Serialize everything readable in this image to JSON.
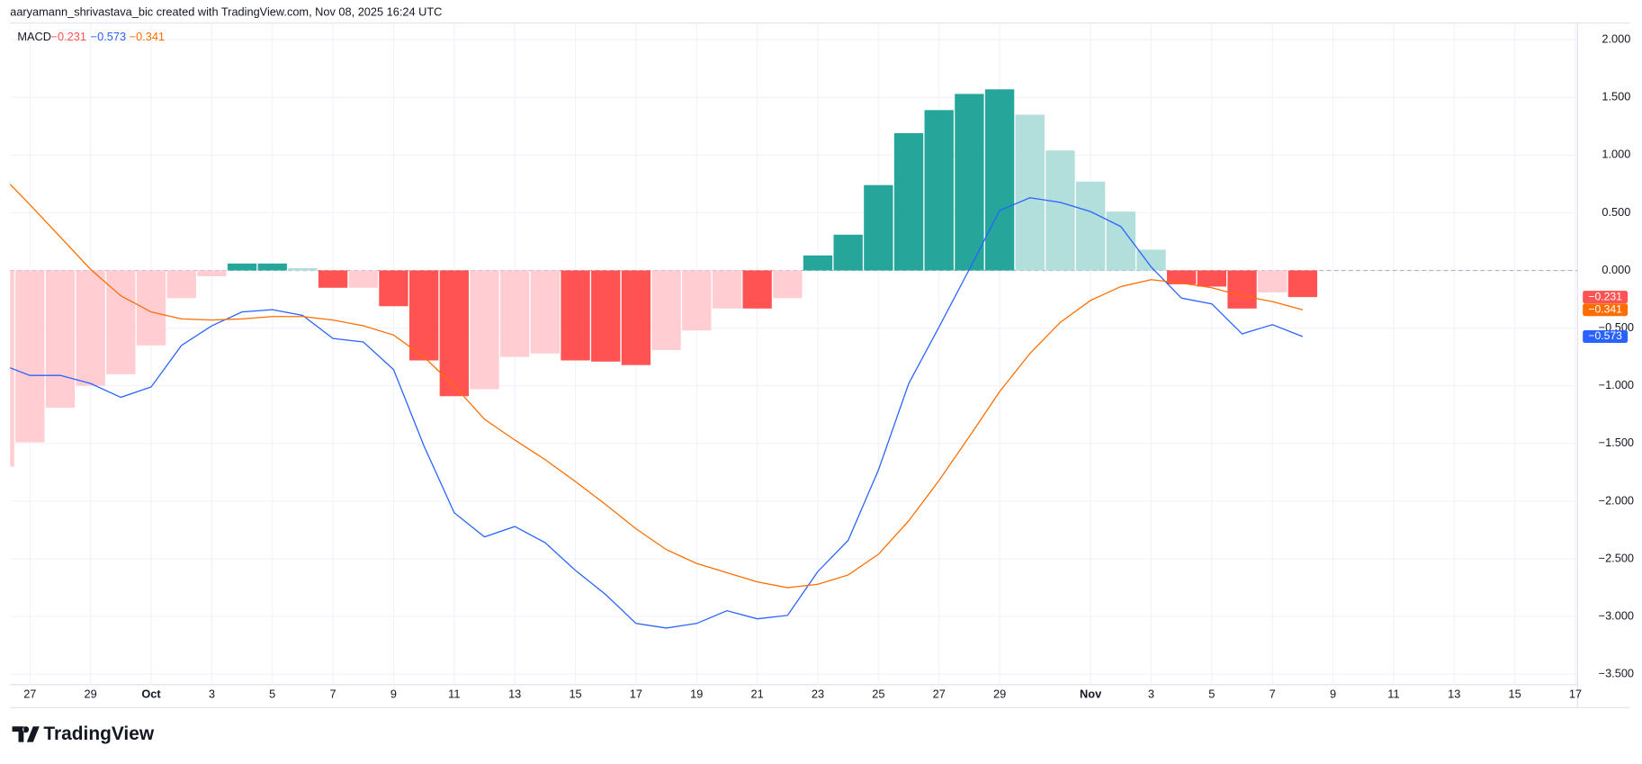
{
  "chart_data": {
    "type": "macd",
    "subtitle": "aaryamann_shrivastava_bic created with TradingView.com, Nov 08, 2025 16:24 UTC",
    "indicator": "MACD",
    "watermark": "TradingView",
    "x": [
      0,
      1,
      2,
      3,
      4,
      5,
      6,
      7,
      8,
      9,
      10,
      11,
      12,
      13,
      14,
      15,
      16,
      17,
      18,
      19,
      20,
      21,
      22,
      23,
      24,
      25,
      26,
      27,
      28,
      29,
      30,
      31,
      32,
      33,
      34,
      35,
      36,
      37,
      38,
      39,
      40,
      41,
      42,
      43
    ],
    "xlim": [
      0.345,
      52.07
    ],
    "xticks": [
      {
        "value": 1,
        "label": "27"
      },
      {
        "value": 3,
        "label": "29"
      },
      {
        "value": 5,
        "label": "Oct"
      },
      {
        "value": 7,
        "label": "3"
      },
      {
        "value": 9,
        "label": "5"
      },
      {
        "value": 11,
        "label": "7"
      },
      {
        "value": 13,
        "label": "9"
      },
      {
        "value": 15,
        "label": "11"
      },
      {
        "value": 17,
        "label": "13"
      },
      {
        "value": 19,
        "label": "15"
      },
      {
        "value": 21,
        "label": "17"
      },
      {
        "value": 23,
        "label": "19"
      },
      {
        "value": 25,
        "label": "21"
      },
      {
        "value": 27,
        "label": "23"
      },
      {
        "value": 29,
        "label": "25"
      },
      {
        "value": 31,
        "label": "27"
      },
      {
        "value": 33,
        "label": "29"
      },
      {
        "value": 36,
        "label": "Nov"
      },
      {
        "value": 38,
        "label": "3"
      },
      {
        "value": 40,
        "label": "5"
      },
      {
        "value": 42,
        "label": "7"
      },
      {
        "value": 44,
        "label": "9"
      },
      {
        "value": 46,
        "label": "11"
      },
      {
        "value": 48,
        "label": "13"
      },
      {
        "value": 50,
        "label": "15"
      },
      {
        "value": 52,
        "label": "17"
      }
    ],
    "ylim": [
      -3.59,
      2.145
    ],
    "yticks": [
      {
        "value": 2,
        "label": "2.000"
      },
      {
        "value": 1.5,
        "label": "1.500"
      },
      {
        "value": 1,
        "label": "1.000"
      },
      {
        "value": 0.5,
        "label": "0.500"
      },
      {
        "value": 0,
        "label": "0.000"
      },
      {
        "value": -0.5,
        "label": "−0.500"
      },
      {
        "value": -1,
        "label": "−1.000"
      },
      {
        "value": -1.5,
        "label": "−1.500"
      },
      {
        "value": -2,
        "label": "−2.000"
      },
      {
        "value": -2.5,
        "label": "−2.500"
      },
      {
        "value": -3,
        "label": "−3.000"
      },
      {
        "value": -3.5,
        "label": "−3.500"
      }
    ],
    "grid": true,
    "series": [
      {
        "type": "bar",
        "color": "#ff5252",
        "last_label": "−0.231",
        "values": [
          -1.7,
          -1.49,
          -1.19,
          -1.0,
          -0.9,
          -0.65,
          -0.24,
          -0.05,
          0.06,
          0.06,
          0.02,
          -0.15,
          -0.15,
          -0.31,
          -0.78,
          -1.09,
          -1.03,
          -0.75,
          -0.72,
          -0.78,
          -0.79,
          -0.82,
          -0.69,
          -0.52,
          -0.33,
          -0.33,
          -0.24,
          0.13,
          0.31,
          0.74,
          1.19,
          1.39,
          1.53,
          1.57,
          1.35,
          1.04,
          0.77,
          0.51,
          0.18,
          -0.12,
          -0.14,
          -0.33,
          -0.19,
          -0.231
        ],
        "colors": [
          "#ffcdd2",
          "#ffcdd2",
          "#ffcdd2",
          "#ffcdd2",
          "#ffcdd2",
          "#ffcdd2",
          "#ffcdd2",
          "#ffcdd2",
          "#26a69a",
          "#26a69a",
          "#b2dfdb",
          "#ff5252",
          "#ffcdd2",
          "#ff5252",
          "#ff5252",
          "#ff5252",
          "#ffcdd2",
          "#ffcdd2",
          "#ffcdd2",
          "#ff5252",
          "#ff5252",
          "#ff5252",
          "#ffcdd2",
          "#ffcdd2",
          "#ffcdd2",
          "#ff5252",
          "#ffcdd2",
          "#26a69a",
          "#26a69a",
          "#26a69a",
          "#26a69a",
          "#26a69a",
          "#26a69a",
          "#26a69a",
          "#b2dfdb",
          "#b2dfdb",
          "#b2dfdb",
          "#b2dfdb",
          "#b2dfdb",
          "#ff5252",
          "#ff5252",
          "#ff5252",
          "#ffcdd2",
          "#ff5252"
        ]
      },
      {
        "type": "line",
        "color": "#2962ff",
        "last_label": "−0.573",
        "values": [
          -0.81,
          -0.91,
          -0.91,
          -0.98,
          -1.1,
          -1.01,
          -0.65,
          -0.48,
          -0.36,
          -0.34,
          -0.39,
          -0.59,
          -0.62,
          -0.86,
          -1.52,
          -2.1,
          -2.31,
          -2.22,
          -2.36,
          -2.6,
          -2.81,
          -3.06,
          -3.1,
          -3.06,
          -2.95,
          -3.02,
          -2.99,
          -2.61,
          -2.34,
          -1.73,
          -0.98,
          -0.49,
          0.01,
          0.52,
          0.63,
          0.59,
          0.51,
          0.38,
          0.03,
          -0.24,
          -0.29,
          -0.55,
          -0.47,
          -0.573
        ]
      },
      {
        "type": "line",
        "color": "#ff6d00",
        "last_label": "−0.341",
        "values": [
          0.84,
          0.57,
          0.29,
          0.01,
          -0.22,
          -0.36,
          -0.42,
          -0.43,
          -0.42,
          -0.4,
          -0.4,
          -0.43,
          -0.48,
          -0.56,
          -0.75,
          -1.0,
          -1.29,
          -1.47,
          -1.64,
          -1.83,
          -2.03,
          -2.24,
          -2.42,
          -2.54,
          -2.62,
          -2.7,
          -2.75,
          -2.72,
          -2.64,
          -2.46,
          -2.17,
          -1.82,
          -1.44,
          -1.05,
          -0.72,
          -0.45,
          -0.26,
          -0.14,
          -0.08,
          -0.11,
          -0.15,
          -0.22,
          -0.27,
          -0.341
        ]
      }
    ]
  }
}
